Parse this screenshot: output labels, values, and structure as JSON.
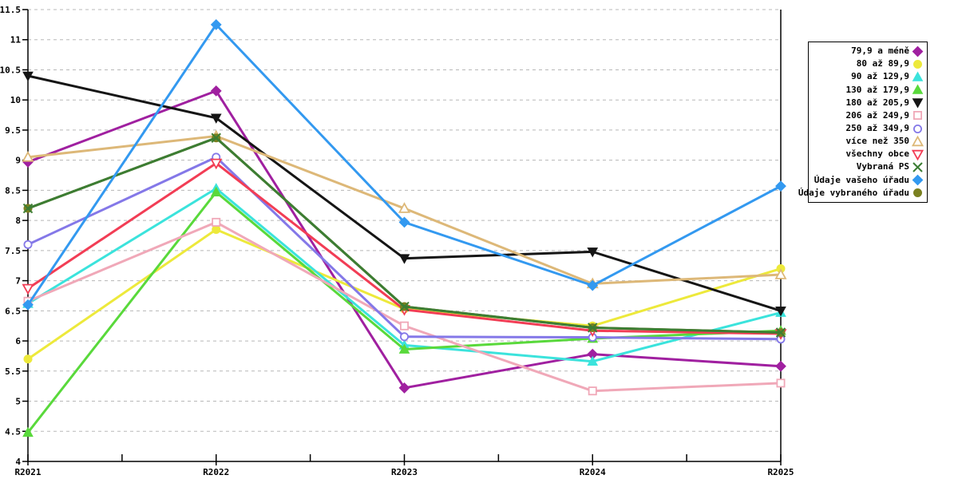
{
  "chart_data": {
    "type": "line",
    "title": "",
    "xlabel": "",
    "ylabel": "",
    "categories": [
      "R2021",
      "R2022",
      "R2023",
      "R2024",
      "R2025"
    ],
    "ylim": [
      4,
      11.5
    ],
    "ytick_step": 0.5,
    "y_tick_labels": [
      "4",
      "4.5",
      "5",
      "5.5",
      "6",
      "6.5",
      "7",
      "7.5",
      "8",
      "8.5",
      "9",
      "9.5",
      "10",
      "10.5",
      "11",
      "11.5"
    ],
    "grid": "horizontal-dashed",
    "grid_color": "#b8b8b8",
    "axis_color": "#000000",
    "legend_position": "right",
    "series": [
      {
        "name": "79,9 a méně",
        "color": "#A020A0",
        "marker": "diamond",
        "filled": true,
        "values": [
          8.97,
          10.15,
          5.22,
          5.78,
          5.58
        ]
      },
      {
        "name": "80 až 89,9",
        "color": "#EDE93B",
        "marker": "circle",
        "filled": true,
        "values": [
          5.7,
          7.85,
          6.53,
          6.25,
          7.2
        ]
      },
      {
        "name": "90 až 129,9",
        "color": "#3BE3DC",
        "marker": "triangle-up",
        "filled": true,
        "values": [
          6.62,
          8.53,
          5.93,
          5.66,
          6.47
        ]
      },
      {
        "name": "130 až 179,9",
        "color": "#59D93B",
        "marker": "triangle-up",
        "filled": true,
        "values": [
          4.48,
          8.47,
          5.86,
          6.04,
          6.17
        ]
      },
      {
        "name": "180 až 205,9",
        "color": "#151515",
        "marker": "triangle-down",
        "filled": true,
        "values": [
          10.4,
          9.7,
          7.37,
          7.48,
          6.5
        ]
      },
      {
        "name": "206 až 249,9",
        "color": "#F0A8B8",
        "marker": "square",
        "filled": false,
        "values": [
          6.66,
          7.97,
          6.25,
          5.17,
          5.3
        ]
      },
      {
        "name": "250 až 349,9",
        "color": "#8478E8",
        "marker": "circle",
        "filled": false,
        "values": [
          7.6,
          9.05,
          6.07,
          6.06,
          6.03
        ]
      },
      {
        "name": "více než 350",
        "color": "#DDB878",
        "marker": "triangle-up",
        "filled": false,
        "values": [
          9.05,
          9.4,
          8.2,
          6.95,
          7.1
        ]
      },
      {
        "name": "všechny obce",
        "color": "#F23D55",
        "marker": "triangle-down",
        "filled": false,
        "values": [
          6.87,
          8.95,
          6.52,
          6.17,
          6.12
        ]
      },
      {
        "name": "Vybraná PS",
        "color": "#3C7D33",
        "marker": "x",
        "filled": false,
        "values": [
          8.2,
          9.37,
          6.57,
          6.22,
          6.14
        ]
      },
      {
        "name": "Údaje vašeho úřadu",
        "color": "#3399F0",
        "marker": "diamond",
        "filled": true,
        "values": [
          6.6,
          11.25,
          7.97,
          6.92,
          8.57
        ]
      },
      {
        "name": "Údaje vybraného úřadu",
        "color": "#7A8020",
        "marker": "circle",
        "filled": true,
        "values": [
          8.2,
          9.37,
          6.57,
          6.22,
          6.14
        ]
      }
    ],
    "draw_order": [
      0,
      1,
      2,
      3,
      4,
      5,
      6,
      7,
      8,
      11,
      9,
      10
    ]
  }
}
